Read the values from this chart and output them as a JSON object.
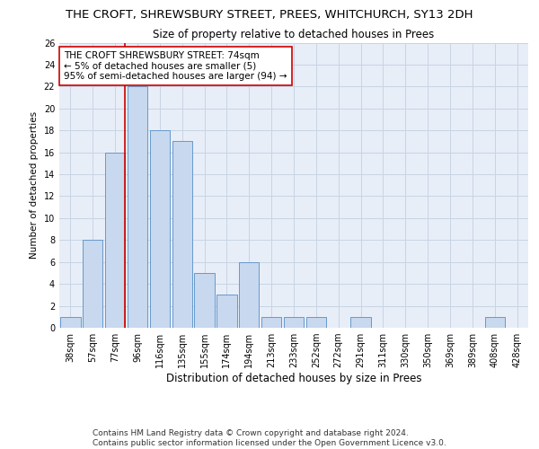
{
  "title": "THE CROFT, SHREWSBURY STREET, PREES, WHITCHURCH, SY13 2DH",
  "subtitle": "Size of property relative to detached houses in Prees",
  "xlabel": "Distribution of detached houses by size in Prees",
  "ylabel": "Number of detached properties",
  "bin_labels": [
    "38sqm",
    "57sqm",
    "77sqm",
    "96sqm",
    "116sqm",
    "135sqm",
    "155sqm",
    "174sqm",
    "194sqm",
    "213sqm",
    "233sqm",
    "252sqm",
    "272sqm",
    "291sqm",
    "311sqm",
    "330sqm",
    "350sqm",
    "369sqm",
    "389sqm",
    "408sqm",
    "428sqm"
  ],
  "bar_values": [
    1,
    8,
    16,
    22,
    18,
    17,
    5,
    3,
    6,
    1,
    1,
    1,
    0,
    1,
    0,
    0,
    0,
    0,
    0,
    1,
    0
  ],
  "bar_color": "#c8d8ee",
  "bar_edge_color": "#6699cc",
  "subject_line_idx": 2,
  "subject_line_color": "#cc0000",
  "annotation_text": "THE CROFT SHREWSBURY STREET: 74sqm\n← 5% of detached houses are smaller (5)\n95% of semi-detached houses are larger (94) →",
  "annotation_box_color": "#ffffff",
  "annotation_box_edge": "#cc0000",
  "ylim": [
    0,
    26
  ],
  "yticks": [
    0,
    2,
    4,
    6,
    8,
    10,
    12,
    14,
    16,
    18,
    20,
    22,
    24,
    26
  ],
  "grid_color": "#c8d4e4",
  "bg_color": "#e8eef8",
  "footer_line1": "Contains HM Land Registry data © Crown copyright and database right 2024.",
  "footer_line2": "Contains public sector information licensed under the Open Government Licence v3.0.",
  "title_fontsize": 9.5,
  "subtitle_fontsize": 8.5,
  "xlabel_fontsize": 8.5,
  "ylabel_fontsize": 7.5,
  "tick_fontsize": 7,
  "annotation_fontsize": 7.5,
  "footer_fontsize": 6.5
}
